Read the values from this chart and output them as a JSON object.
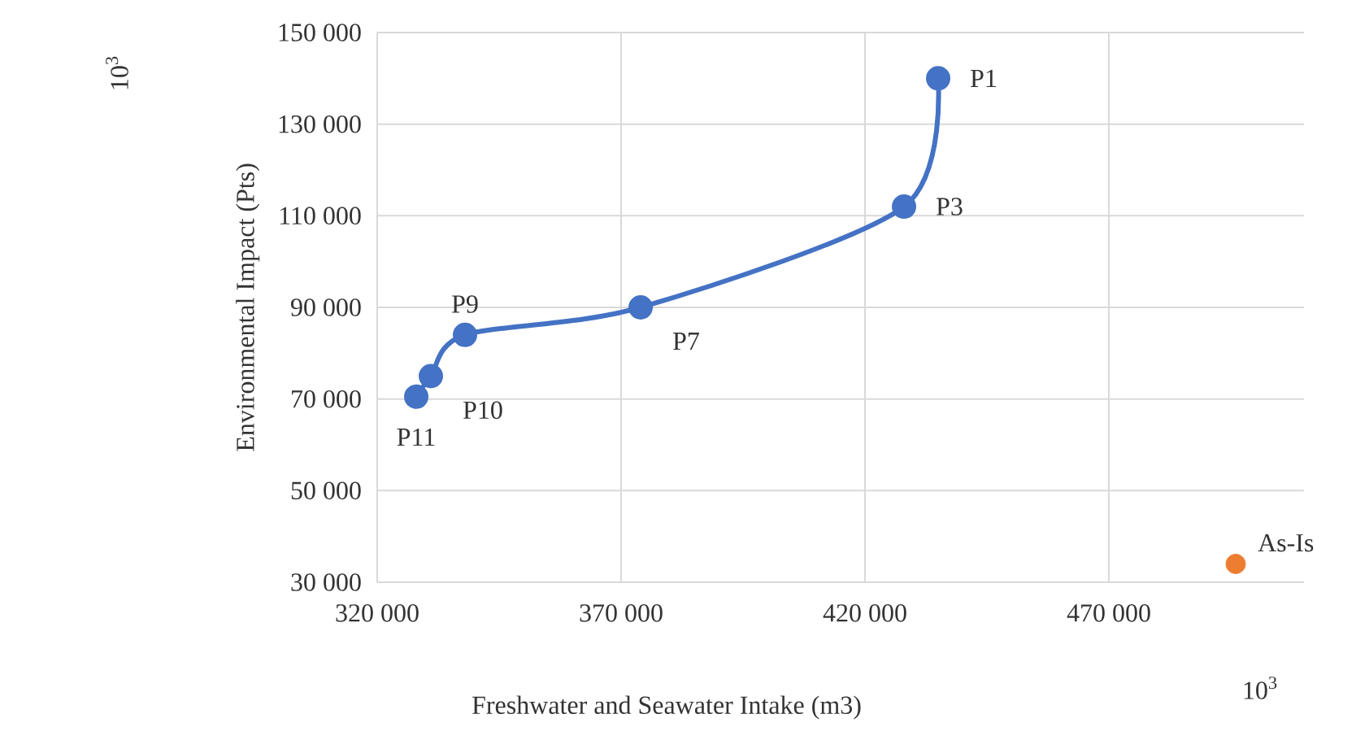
{
  "chart_data": {
    "type": "line",
    "xlabel": "Freshwater and Seawater Intake (m3)",
    "ylabel": "Environmental Impact (Pts)",
    "series": [
      {
        "color": "#4472c4",
        "x": [
          435000,
          428000,
          374000,
          338000,
          331000,
          328000
        ],
        "values": [
          140000,
          112000,
          90000,
          84000,
          75000,
          70500
        ],
        "marker": "circle"
      },
      {
        "type": "scatter",
        "color": "#ed7d31",
        "x": [
          496000
        ],
        "values": [
          34000
        ],
        "marker": "circle"
      }
    ],
    "xlim": [
      320000,
      510000
    ],
    "ylim": [
      30000,
      150000
    ],
    "xticks": [
      {
        "value": 320000,
        "label": "320 000"
      },
      {
        "value": 370000,
        "label": "370 000"
      },
      {
        "value": 420000,
        "label": "420 000"
      },
      {
        "value": 470000,
        "label": "470 000"
      }
    ],
    "yticks": [
      {
        "value": 30000,
        "label": "30 000"
      },
      {
        "value": 50000,
        "label": "50 000"
      },
      {
        "value": 70000,
        "label": "70 000"
      },
      {
        "value": 90000,
        "label": "90 000"
      },
      {
        "value": 110000,
        "label": "110 000"
      },
      {
        "value": 130000,
        "label": "130 000"
      },
      {
        "value": 150000,
        "label": "150 000"
      }
    ],
    "grid": true,
    "annotations": [
      "10$^{3}$",
      "10$^{3}$",
      {
        "text": "P1",
        "x": 435000,
        "y": 140000
      },
      {
        "text": "P3",
        "x": 428000,
        "y": 112000
      },
      {
        "text": "P7",
        "x": 374000,
        "y": 90000
      },
      {
        "text": "P9",
        "x": 338000,
        "y": 84000
      },
      {
        "text": "P10",
        "x": 331000,
        "y": 75000
      },
      {
        "text": "P11",
        "x": 328000,
        "y": 70500
      },
      {
        "text": "As-Is",
        "x": 496000,
        "y": 34000
      }
    ]
  }
}
